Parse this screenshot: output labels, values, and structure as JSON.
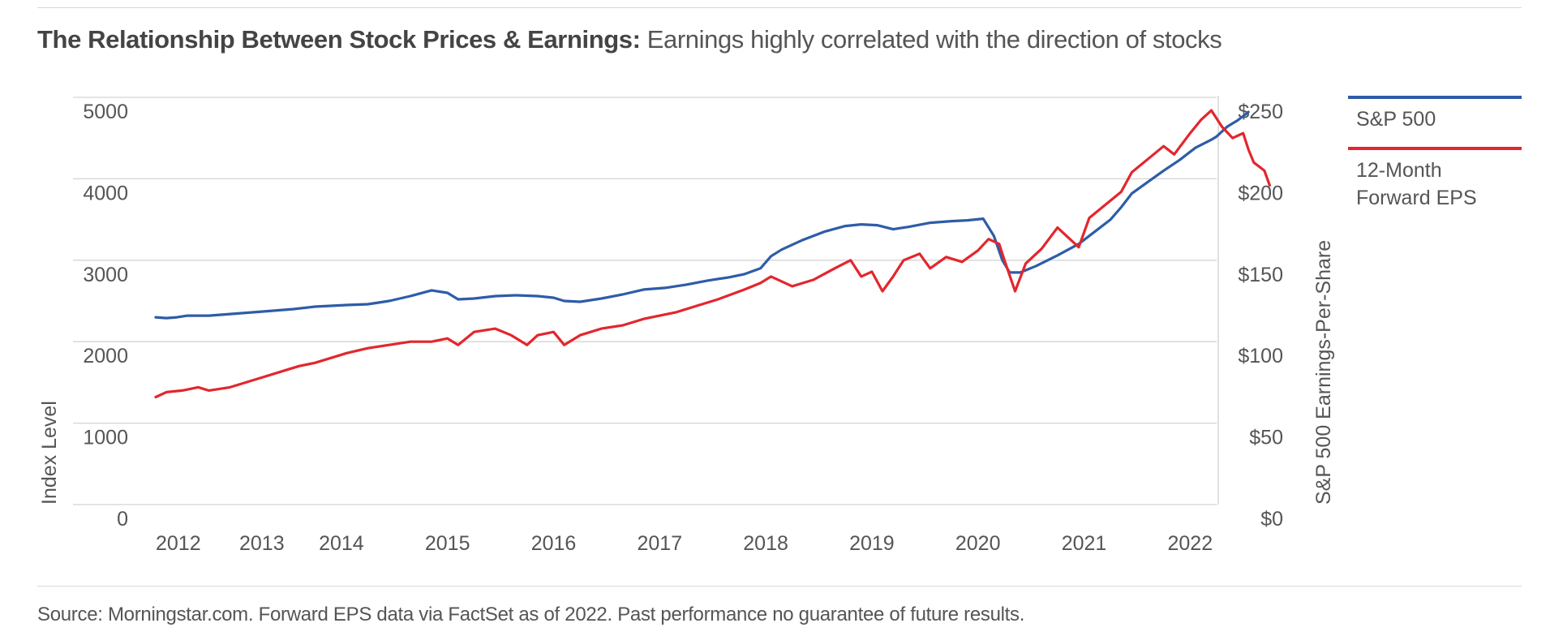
{
  "header": {
    "title_bold": "The Relationship Between Stock Prices & Earnings:",
    "title_rest": " Earnings highly correlated with the direction of stocks"
  },
  "footer": {
    "source": "Source: Morningstar.com. Forward EPS data via FactSet as of 2022. Past performance no guarantee of future results."
  },
  "legend": [
    {
      "label": "S&P 500",
      "color": "#2e5ca8"
    },
    {
      "label": "12-Month Forward EPS",
      "color": "#e3262d"
    }
  ],
  "chart_data": {
    "type": "line",
    "title": "The Relationship Between Stock Prices & Earnings: Earnings highly correlated with the direction of stocks",
    "ylabel": "Index Level",
    "y2label": "S&P 500 Earnings-Per-Share",
    "ylim": [
      0,
      5000
    ],
    "y2lim": [
      0,
      250
    ],
    "yticks": [
      "5000",
      "4000",
      "3000",
      "2000",
      "1000",
      "0"
    ],
    "y2ticks": [
      "$250",
      "$200",
      "$150",
      "$100",
      "$50",
      "$0"
    ],
    "xticks": [
      {
        "label": "2012",
        "x": 2012.0
      },
      {
        "label": "2013",
        "x": 2013.0
      },
      {
        "label": "2014",
        "x": 2013.75
      },
      {
        "label": "2015",
        "x": 2014.75
      },
      {
        "label": "2016",
        "x": 2015.75
      },
      {
        "label": "2017",
        "x": 2016.75
      },
      {
        "label": "2018",
        "x": 2017.75
      },
      {
        "label": "2019",
        "x": 2018.75
      },
      {
        "label": "2020",
        "x": 2019.75
      },
      {
        "label": "2021",
        "x": 2020.75
      },
      {
        "label": "2022",
        "x": 2021.75
      }
    ],
    "xlim": [
      2012.0,
      2022.0
    ],
    "grid": true,
    "legend_position": "right",
    "series": [
      {
        "name": "S&P 500",
        "axis": "left",
        "color": "#2e5ca8",
        "points": [
          [
            2012.0,
            2300
          ],
          [
            2012.1,
            2290
          ],
          [
            2012.2,
            2300
          ],
          [
            2012.3,
            2320
          ],
          [
            2012.5,
            2320
          ],
          [
            2012.7,
            2340
          ],
          [
            2013.0,
            2370
          ],
          [
            2013.3,
            2400
          ],
          [
            2013.5,
            2430
          ],
          [
            2013.8,
            2450
          ],
          [
            2014.0,
            2460
          ],
          [
            2014.2,
            2500
          ],
          [
            2014.4,
            2560
          ],
          [
            2014.6,
            2630
          ],
          [
            2014.75,
            2600
          ],
          [
            2014.85,
            2520
          ],
          [
            2015.0,
            2530
          ],
          [
            2015.2,
            2560
          ],
          [
            2015.4,
            2570
          ],
          [
            2015.6,
            2560
          ],
          [
            2015.75,
            2540
          ],
          [
            2015.85,
            2500
          ],
          [
            2016.0,
            2490
          ],
          [
            2016.2,
            2530
          ],
          [
            2016.4,
            2580
          ],
          [
            2016.6,
            2640
          ],
          [
            2016.8,
            2660
          ],
          [
            2017.0,
            2700
          ],
          [
            2017.2,
            2750
          ],
          [
            2017.4,
            2790
          ],
          [
            2017.55,
            2830
          ],
          [
            2017.7,
            2900
          ],
          [
            2017.8,
            3050
          ],
          [
            2017.9,
            3130
          ],
          [
            2018.1,
            3250
          ],
          [
            2018.3,
            3350
          ],
          [
            2018.5,
            3420
          ],
          [
            2018.65,
            3440
          ],
          [
            2018.8,
            3430
          ],
          [
            2018.95,
            3380
          ],
          [
            2019.1,
            3410
          ],
          [
            2019.3,
            3460
          ],
          [
            2019.5,
            3480
          ],
          [
            2019.65,
            3490
          ],
          [
            2019.8,
            3510
          ],
          [
            2019.9,
            3300
          ],
          [
            2019.98,
            3000
          ],
          [
            2020.05,
            2850
          ],
          [
            2020.15,
            2850
          ],
          [
            2020.3,
            2930
          ],
          [
            2020.5,
            3060
          ],
          [
            2020.7,
            3200
          ],
          [
            2020.85,
            3350
          ],
          [
            2021.0,
            3500
          ],
          [
            2021.1,
            3650
          ],
          [
            2021.2,
            3820
          ],
          [
            2021.35,
            3960
          ],
          [
            2021.5,
            4100
          ],
          [
            2021.65,
            4230
          ],
          [
            2021.8,
            4380
          ],
          [
            2021.95,
            4480
          ],
          [
            2022.0,
            4520
          ],
          [
            2022.1,
            4640
          ],
          [
            2022.2,
            4720
          ],
          [
            2022.3,
            4820
          ]
        ]
      },
      {
        "name": "12-Month Forward EPS",
        "axis": "right",
        "color": "#e3262d",
        "points": [
          [
            2012.0,
            66
          ],
          [
            2012.1,
            69
          ],
          [
            2012.25,
            70
          ],
          [
            2012.4,
            72
          ],
          [
            2012.5,
            70
          ],
          [
            2012.7,
            72
          ],
          [
            2012.9,
            76
          ],
          [
            2013.0,
            78
          ],
          [
            2013.2,
            82
          ],
          [
            2013.35,
            85
          ],
          [
            2013.5,
            87
          ],
          [
            2013.65,
            90
          ],
          [
            2013.8,
            93
          ],
          [
            2014.0,
            96
          ],
          [
            2014.2,
            98
          ],
          [
            2014.4,
            100
          ],
          [
            2014.6,
            100
          ],
          [
            2014.75,
            102
          ],
          [
            2014.85,
            98
          ],
          [
            2015.0,
            106
          ],
          [
            2015.2,
            108
          ],
          [
            2015.35,
            104
          ],
          [
            2015.5,
            98
          ],
          [
            2015.6,
            104
          ],
          [
            2015.75,
            106
          ],
          [
            2015.85,
            98
          ],
          [
            2016.0,
            104
          ],
          [
            2016.2,
            108
          ],
          [
            2016.4,
            110
          ],
          [
            2016.5,
            112
          ],
          [
            2016.6,
            114
          ],
          [
            2016.75,
            116
          ],
          [
            2016.9,
            118
          ],
          [
            2017.1,
            122
          ],
          [
            2017.3,
            126
          ],
          [
            2017.55,
            132
          ],
          [
            2017.7,
            136
          ],
          [
            2017.8,
            140
          ],
          [
            2017.9,
            137
          ],
          [
            2018.0,
            134
          ],
          [
            2018.2,
            138
          ],
          [
            2018.4,
            145
          ],
          [
            2018.55,
            150
          ],
          [
            2018.65,
            140
          ],
          [
            2018.75,
            143
          ],
          [
            2018.85,
            131
          ],
          [
            2018.95,
            140
          ],
          [
            2019.05,
            150
          ],
          [
            2019.2,
            154
          ],
          [
            2019.3,
            145
          ],
          [
            2019.45,
            152
          ],
          [
            2019.6,
            149
          ],
          [
            2019.75,
            156
          ],
          [
            2019.85,
            163
          ],
          [
            2019.95,
            160
          ],
          [
            2020.0,
            150
          ],
          [
            2020.1,
            131
          ],
          [
            2020.2,
            148
          ],
          [
            2020.35,
            157
          ],
          [
            2020.5,
            170
          ],
          [
            2020.6,
            164
          ],
          [
            2020.7,
            158
          ],
          [
            2020.8,
            176
          ],
          [
            2020.95,
            184
          ],
          [
            2021.1,
            192
          ],
          [
            2021.2,
            204
          ],
          [
            2021.35,
            212
          ],
          [
            2021.5,
            220
          ],
          [
            2021.6,
            215
          ],
          [
            2021.75,
            228
          ],
          [
            2021.85,
            236
          ],
          [
            2021.95,
            242
          ],
          [
            2022.05,
            232
          ],
          [
            2022.15,
            225
          ],
          [
            2022.25,
            228
          ],
          [
            2022.3,
            218
          ],
          [
            2022.35,
            210
          ],
          [
            2022.45,
            205
          ],
          [
            2022.5,
            196
          ]
        ]
      }
    ]
  }
}
